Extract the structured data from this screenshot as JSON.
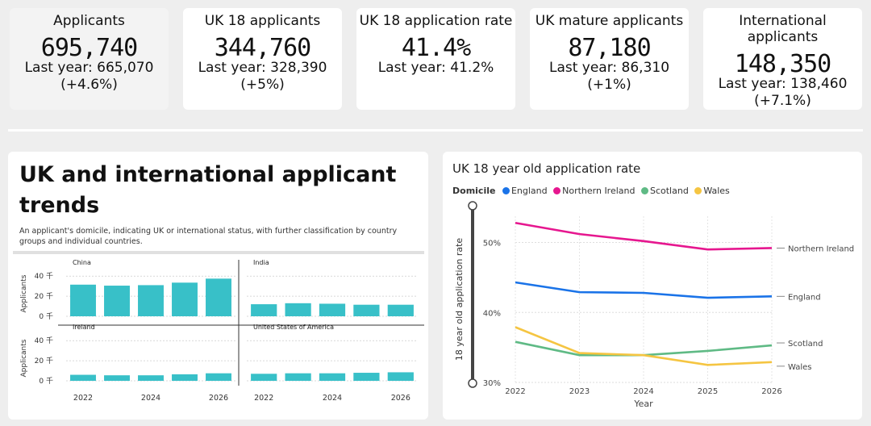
{
  "kpis": [
    {
      "title": "Applicants",
      "value": "695,740",
      "last": "Last year: 665,070",
      "delta": "(+4.6%)"
    },
    {
      "title": "UK 18 applicants",
      "value": "344,760",
      "last": "Last year: 328,390",
      "delta": "(+5%)"
    },
    {
      "title": "UK 18 application rate",
      "value": "41.4%",
      "last": "Last year: 41.2%",
      "delta": ""
    },
    {
      "title": "UK mature applicants",
      "value": "87,180",
      "last": "Last year: 86,310",
      "delta": "(+1%)"
    },
    {
      "title": "International applicants",
      "value": "148,350",
      "last": "Last year: 138,460",
      "delta": "(+7.1%)"
    }
  ],
  "trends": {
    "title": "UK and international applicant trends",
    "description": "An applicant's domicile, indicating UK or international status, with further classification by country groups and individual countries."
  },
  "chart_data": [
    {
      "type": "bar",
      "ylabel": "Applicants",
      "yticks": [
        "0 千",
        "20 千",
        "40 千"
      ],
      "ylim": [
        0,
        45000
      ],
      "categories": [
        "2022",
        "2023",
        "2024",
        "2025",
        "2026"
      ],
      "xtick_labels": [
        "2022",
        "2024",
        "2026"
      ],
      "bar_color": "#38c0c8",
      "panels": [
        {
          "name": "China",
          "values": [
            31500,
            30500,
            31000,
            33500,
            37500
          ]
        },
        {
          "name": "India",
          "values": [
            12000,
            13000,
            12500,
            11500,
            11500
          ]
        },
        {
          "name": "Ireland",
          "values": [
            6000,
            5500,
            5500,
            6500,
            7500
          ]
        },
        {
          "name": "United States of America",
          "values": [
            7000,
            7500,
            7500,
            8000,
            8500
          ]
        }
      ]
    },
    {
      "type": "line",
      "title": "UK 18 year old application rate",
      "legend_title": "Domicile",
      "xlabel": "Year",
      "ylabel": "18 year old application rate",
      "x": [
        "2022",
        "2023",
        "2024",
        "2025",
        "2026"
      ],
      "yticks": [
        "30%",
        "40%",
        "50%"
      ],
      "ylim": [
        30,
        52
      ],
      "series": [
        {
          "name": "England",
          "color": "#1a73e8",
          "values": [
            44.3,
            42.9,
            42.8,
            42.1,
            42.3
          ]
        },
        {
          "name": "Northern Ireland",
          "color": "#e6178f",
          "values": [
            52.8,
            51.2,
            50.2,
            49.0,
            49.2
          ]
        },
        {
          "name": "Scotland",
          "color": "#5fba85",
          "values": [
            35.8,
            33.9,
            33.9,
            34.5,
            35.3
          ]
        },
        {
          "name": "Wales",
          "color": "#f5c542",
          "values": [
            37.9,
            34.2,
            33.9,
            32.5,
            32.9
          ]
        }
      ]
    }
  ]
}
